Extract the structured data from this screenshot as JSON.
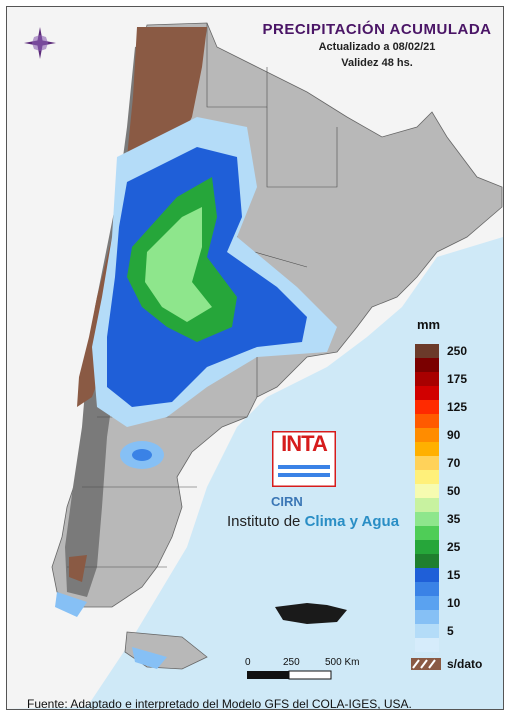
{
  "header": {
    "title": "PRECIPITACIÓN ACUMULADA",
    "updated": "Actualizado a 08/02/21",
    "validity": "Validez 48 hs."
  },
  "legend": {
    "unit": "mm",
    "classes": [
      {
        "label": "250",
        "color": "#6b3a2a"
      },
      {
        "label": "",
        "color": "#7a0000"
      },
      {
        "label": "175",
        "color": "#a80000"
      },
      {
        "label": "",
        "color": "#d10000"
      },
      {
        "label": "125",
        "color": "#ff2a00"
      },
      {
        "label": "",
        "color": "#ff5a00"
      },
      {
        "label": "90",
        "color": "#ff8c00"
      },
      {
        "label": "",
        "color": "#ffb000"
      },
      {
        "label": "70",
        "color": "#ffd25a"
      },
      {
        "label": "",
        "color": "#fff07a"
      },
      {
        "label": "50",
        "color": "#f6fbb0"
      },
      {
        "label": "",
        "color": "#c8f2a0"
      },
      {
        "label": "35",
        "color": "#8ee68c"
      },
      {
        "label": "",
        "color": "#4fcd57"
      },
      {
        "label": "25",
        "color": "#26a63a"
      },
      {
        "label": "",
        "color": "#1f7f2e"
      },
      {
        "label": "15",
        "color": "#1f5fd8"
      },
      {
        "label": "",
        "color": "#3a82e6"
      },
      {
        "label": "10",
        "color": "#5aa2f0"
      },
      {
        "label": "",
        "color": "#86c0f5"
      },
      {
        "label": "5",
        "color": "#b4dcf8"
      },
      {
        "label": "",
        "color": "#d6ecfb"
      }
    ],
    "nodata_label": "s/dato",
    "nodata_color": "#8a5a44"
  },
  "logo": {
    "brand": "INTA",
    "brand_color": "#d61c1c",
    "sub_brand": "CIRN",
    "institute_prefix": "Instituto de",
    "institute_highlight": "Clima y Agua"
  },
  "scale": {
    "labels": [
      "0",
      "250",
      "500 Km"
    ]
  },
  "footer": {
    "source": "Fuente: Adaptado e interpretado del Modelo GFS del COLA-IGES, USA."
  },
  "map_colors": {
    "sea": "#cfe9f7",
    "neighbors": "#f4f4f4",
    "land": "#b8b8b8",
    "andes": "#7a7a7a",
    "nodata": "#8a5a44"
  }
}
